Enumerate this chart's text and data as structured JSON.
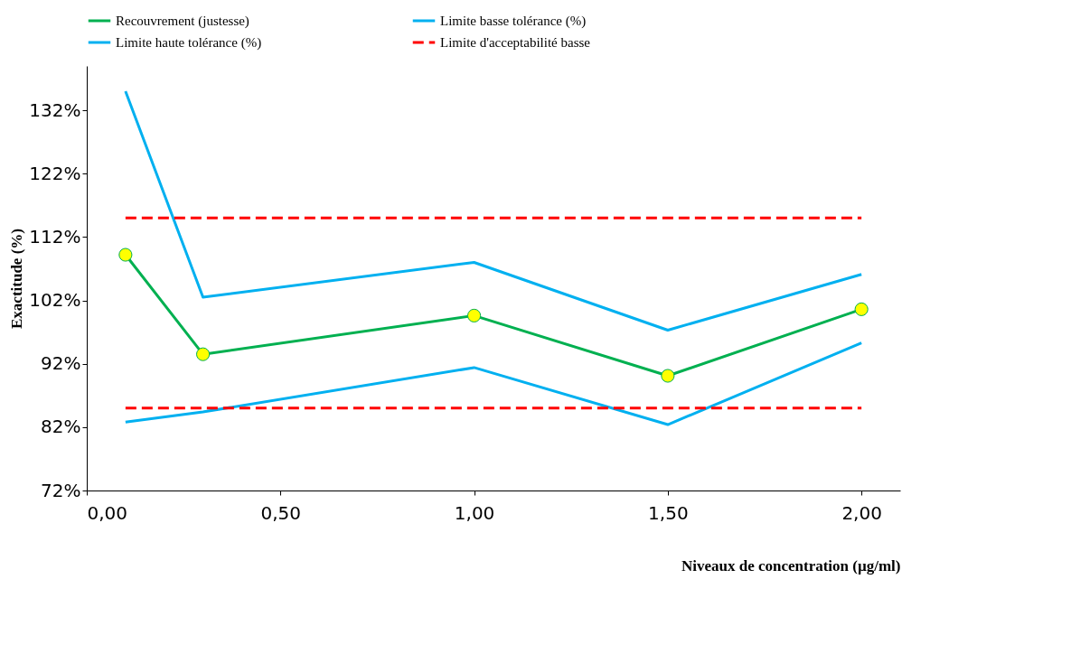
{
  "chart_data": {
    "type": "line",
    "xlabel": "Niveaux de concentration (µg/ml)",
    "ylabel": "Exactitude (%)",
    "x": [
      0.1,
      0.3,
      1.0,
      1.5,
      2.0
    ],
    "series": [
      {
        "name": "Recouvrement (justesse)",
        "color": "#00b050",
        "marker": "circle",
        "values": [
          109.2,
          93.5,
          99.6,
          90.1,
          100.6
        ]
      },
      {
        "name": "Limite basse tolérance (%)",
        "color": "#00b0f0",
        "values": [
          82.8,
          84.4,
          91.4,
          82.4,
          95.3
        ]
      },
      {
        "name": "Limite haute tolérance (%)",
        "color": "#00b0f0",
        "values": [
          135,
          102.5,
          108,
          97.3,
          106.1
        ]
      },
      {
        "name": "Limite d'acceptabilité basse",
        "color": "#ff0000",
        "line_style": "dashed",
        "values": [
          85,
          85,
          85,
          85,
          85
        ]
      },
      {
        "color": "#ff0000",
        "line_style": "dashed",
        "values": [
          115,
          115,
          115,
          115,
          115
        ]
      }
    ],
    "xlim": [
      0,
      2.1
    ],
    "xticks": [
      {
        "value": 0,
        "label": "0,00"
      },
      {
        "value": 0.5,
        "label": "0,50"
      },
      {
        "value": 1,
        "label": "1,00"
      },
      {
        "value": 1.5,
        "label": "1,50"
      },
      {
        "value": 2,
        "label": "2,00"
      }
    ],
    "ylim": [
      72,
      139
    ],
    "yticks": [
      {
        "value": 72,
        "label": "72%"
      },
      {
        "value": 82,
        "label": "82%"
      },
      {
        "value": 92,
        "label": "92%"
      },
      {
        "value": 102,
        "label": "102%"
      },
      {
        "value": 112,
        "label": "112%"
      },
      {
        "value": 122,
        "label": "122%"
      },
      {
        "value": 132,
        "label": "132%"
      }
    ],
    "grid": false,
    "legend": "top"
  }
}
